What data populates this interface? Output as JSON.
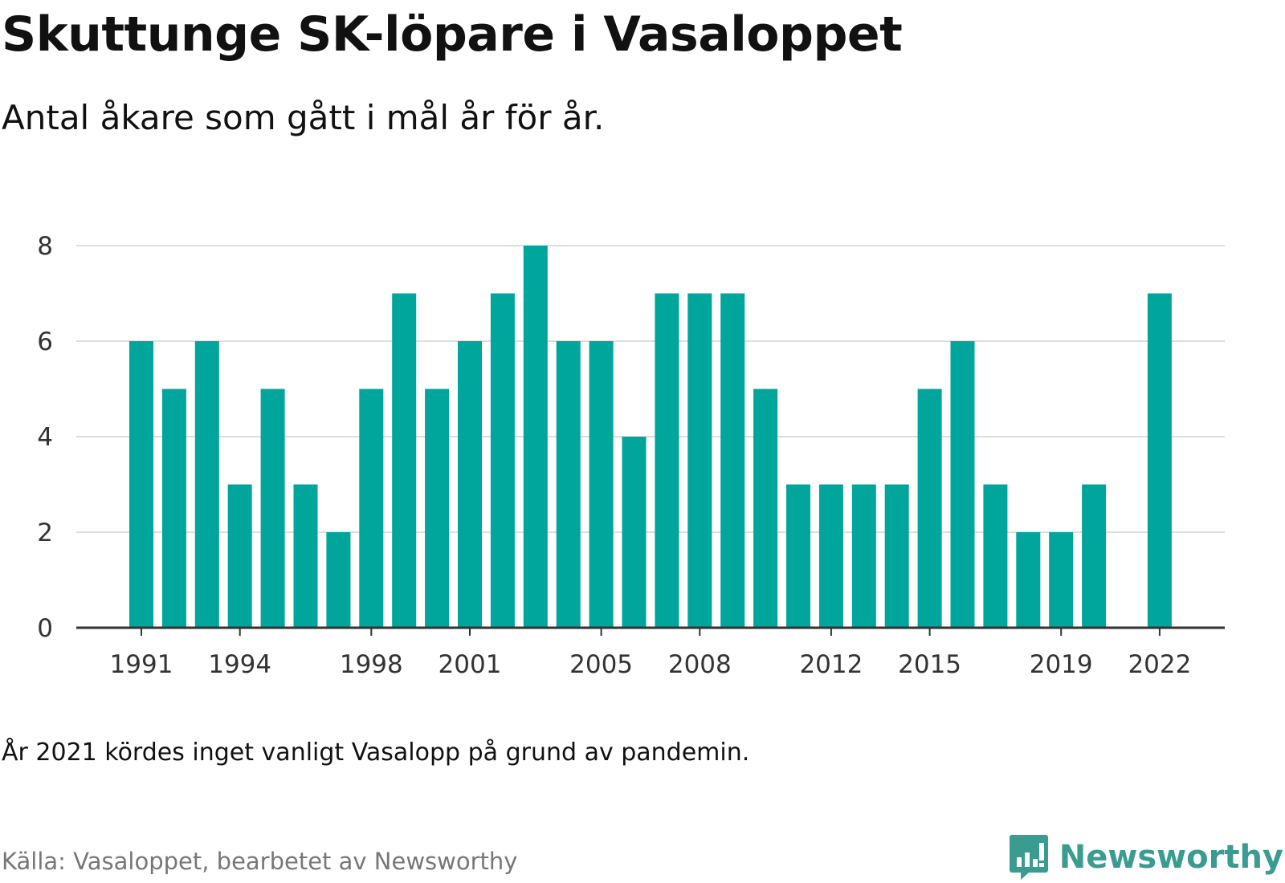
{
  "title": "Skuttunge SK-löpare i Vasaloppet",
  "subtitle": "Antal åkare som gått i mål år för år.",
  "note": "År 2021 kördes inget vanligt Vasalopp på grund av pandemin.",
  "source": "Källa: Vasaloppet, bearbetet av Newsworthy",
  "brand": {
    "name": "Newsworthy",
    "logo_icon": "newsworthy-logo-icon"
  },
  "colors": {
    "bar": "#00a59b",
    "grid": "#dddddd",
    "axis": "#333333",
    "brand": "#3a9b90"
  },
  "chart_data": {
    "type": "bar",
    "categories": [
      1991,
      1992,
      1993,
      1994,
      1995,
      1996,
      1997,
      1998,
      1999,
      2000,
      2001,
      2002,
      2003,
      2004,
      2005,
      2006,
      2007,
      2008,
      2009,
      2010,
      2011,
      2012,
      2013,
      2014,
      2015,
      2016,
      2017,
      2018,
      2019,
      2020,
      2021,
      2022
    ],
    "values": [
      6,
      5,
      6,
      3,
      5,
      3,
      2,
      5,
      7,
      5,
      6,
      7,
      8,
      6,
      6,
      4,
      7,
      7,
      7,
      5,
      3,
      3,
      3,
      3,
      5,
      6,
      3,
      2,
      2,
      3,
      null,
      7
    ],
    "xticks": [
      1991,
      1994,
      1998,
      2001,
      2005,
      2008,
      2012,
      2015,
      2019,
      2022
    ],
    "yticks": [
      0,
      2,
      4,
      6,
      8
    ],
    "ylim": [
      0,
      8
    ],
    "grid": true
  }
}
